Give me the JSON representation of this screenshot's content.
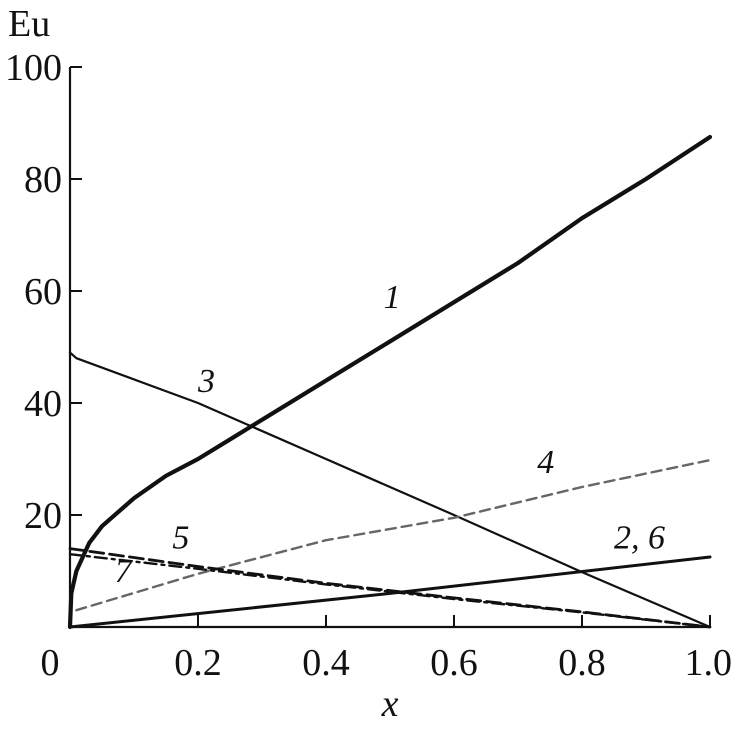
{
  "chart_data": {
    "type": "line",
    "xlabel": "x",
    "ylabel": "Eu",
    "xlim": [
      0,
      1.0
    ],
    "ylim": [
      0,
      100
    ],
    "x_ticks": [
      0,
      0.2,
      0.4,
      0.6,
      0.8,
      1.0
    ],
    "x_tick_labels": [
      "0",
      "0.2",
      "0.4",
      "0.6",
      "0.8",
      "1.0"
    ],
    "y_ticks": [
      20,
      40,
      60,
      80,
      100
    ],
    "y_tick_labels": [
      "20",
      "40",
      "60",
      "80",
      "100"
    ],
    "grid": false,
    "series": [
      {
        "key": "1",
        "style": "solid-thick",
        "color": "#111111",
        "x": [
          0,
          0.002,
          0.01,
          0.03,
          0.05,
          0.1,
          0.15,
          0.2,
          0.25,
          0.3,
          0.4,
          0.5,
          0.6,
          0.7,
          0.8,
          0.9,
          1.0
        ],
        "y": [
          0,
          6,
          10,
          15,
          18,
          23,
          27,
          30,
          33.5,
          37,
          44,
          51,
          58,
          65,
          73,
          80,
          87.5
        ]
      },
      {
        "key": "2,6",
        "style": "solid-medium",
        "color": "#111111",
        "x": [
          0,
          0.5,
          1.0
        ],
        "y": [
          0,
          6,
          12.5
        ]
      },
      {
        "key": "3",
        "style": "solid-thin",
        "color": "#111111",
        "x": [
          0,
          0.01,
          0.2,
          0.4,
          0.6,
          0.8,
          1.0
        ],
        "y": [
          49,
          48,
          40,
          30,
          20,
          9.8,
          0
        ]
      },
      {
        "key": "4",
        "style": "dashed-gray",
        "color": "#666666",
        "x": [
          0.01,
          0.2,
          0.4,
          0.6,
          0.8,
          1.0
        ],
        "y": [
          3,
          9.5,
          15.5,
          19.5,
          25,
          29.8
        ]
      },
      {
        "key": "5",
        "style": "dashed-thick",
        "color": "#111111",
        "x": [
          0,
          0.2,
          0.4,
          0.6,
          0.8,
          1.0
        ],
        "y": [
          14,
          10.8,
          7.8,
          5.2,
          2.7,
          0
        ]
      },
      {
        "key": "7",
        "style": "dashdot",
        "color": "#111111",
        "x": [
          0,
          0.2,
          0.4,
          0.6,
          0.8,
          1.0
        ],
        "y": [
          13,
          10.4,
          7.6,
          5,
          2.6,
          0
        ]
      }
    ],
    "curve_labels": [
      {
        "text": "1",
        "x": 0.49,
        "y": 57
      },
      {
        "text": "3",
        "x": 0.2,
        "y": 42
      },
      {
        "text": "4",
        "x": 0.73,
        "y": 27.5
      },
      {
        "text": "2, 6",
        "x": 0.85,
        "y": 14
      },
      {
        "text": "5",
        "x": 0.16,
        "y": 14
      },
      {
        "text": "7",
        "x": 0.07,
        "y": 8
      }
    ]
  }
}
